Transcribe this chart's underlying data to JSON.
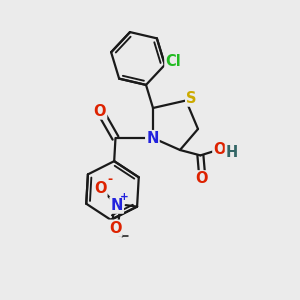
{
  "bg_color": "#ebebeb",
  "bond_color": "#1a1a1a",
  "bond_width": 1.6,
  "atom_colors": {
    "Cl": "#22bb22",
    "S": "#ccaa00",
    "N": "#2222dd",
    "O": "#dd2200",
    "H": "#336666"
  },
  "fs": 10.5
}
